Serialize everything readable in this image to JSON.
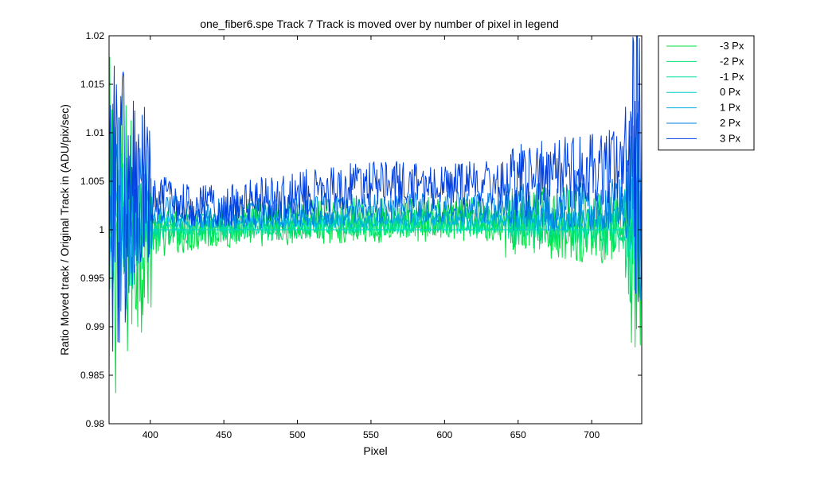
{
  "chart_data": {
    "type": "line",
    "title": "one_fiber6.spe   Track 7     Track is moved over by number of pixel in legend",
    "xlabel": "Pixel",
    "ylabel": "Ratio Moved track / Original Track in (ADU/pix/sec)",
    "xlim": [
      372,
      734
    ],
    "ylim": [
      0.98,
      1.02
    ],
    "x_ticks": [
      400,
      450,
      500,
      550,
      600,
      650,
      700
    ],
    "y_ticks": [
      0.98,
      0.985,
      0.99,
      0.995,
      1,
      1.005,
      1.01,
      1.015,
      1.02
    ],
    "y_tick_labels": [
      "0.98",
      "0.985",
      "0.99",
      "0.995",
      "1",
      "1.005",
      "1.01",
      "1.015",
      "1.02"
    ],
    "grid": false,
    "legend_position": "outside-top-right",
    "series": [
      {
        "name": "-3 Px",
        "color": "#00e040",
        "shift": -3,
        "points": [
          [
            400,
            0.9995
          ],
          [
            450,
            1.0004
          ],
          [
            500,
            1.0008
          ],
          [
            550,
            1.001
          ],
          [
            600,
            1.0011
          ],
          [
            650,
            1.0008
          ],
          [
            700,
            1.0004
          ],
          [
            730,
            0.9998
          ]
        ]
      },
      {
        "name": "-2 Px",
        "color": "#00e070",
        "shift": -2,
        "points": [
          [
            400,
            0.9998
          ],
          [
            450,
            1.0003
          ],
          [
            500,
            1.0006
          ],
          [
            550,
            1.0007
          ],
          [
            600,
            1.0008
          ],
          [
            650,
            1.0006
          ],
          [
            700,
            1.0003
          ],
          [
            730,
            0.9999
          ]
        ]
      },
      {
        "name": "-1 Px",
        "color": "#00e0a0",
        "shift": -1,
        "points": [
          [
            400,
            1.0
          ],
          [
            450,
            1.0002
          ],
          [
            500,
            1.0003
          ],
          [
            550,
            1.0004
          ],
          [
            600,
            1.0004
          ],
          [
            650,
            1.0003
          ],
          [
            700,
            1.0002
          ],
          [
            730,
            1.0
          ]
        ]
      },
      {
        "name": "0 Px",
        "color": "#00d0d0",
        "shift": 0,
        "points": [
          [
            400,
            1.0
          ],
          [
            730,
            1.0
          ]
        ]
      },
      {
        "name": "1 Px",
        "color": "#00b0e0",
        "shift": 1,
        "points": [
          [
            400,
            1.0012
          ],
          [
            450,
            1.0008
          ],
          [
            500,
            1.0009
          ],
          [
            550,
            1.001
          ],
          [
            600,
            1.0011
          ],
          [
            650,
            1.001
          ],
          [
            700,
            1.0012
          ],
          [
            730,
            1.0016
          ]
        ]
      },
      {
        "name": "2 Px",
        "color": "#0080e0",
        "shift": 2,
        "points": [
          [
            400,
            1.0022
          ],
          [
            450,
            1.0016
          ],
          [
            500,
            1.0018
          ],
          [
            550,
            1.0022
          ],
          [
            600,
            1.0024
          ],
          [
            650,
            1.0022
          ],
          [
            700,
            1.0025
          ],
          [
            730,
            1.003
          ]
        ]
      },
      {
        "name": "3 Px",
        "color": "#0040e0",
        "shift": 3,
        "points": [
          [
            400,
            1.0032
          ],
          [
            450,
            1.0024
          ],
          [
            500,
            1.0038
          ],
          [
            550,
            1.0048
          ],
          [
            600,
            1.0045
          ],
          [
            650,
            1.005
          ],
          [
            700,
            1.0062
          ],
          [
            730,
            1.007
          ]
        ]
      }
    ]
  }
}
